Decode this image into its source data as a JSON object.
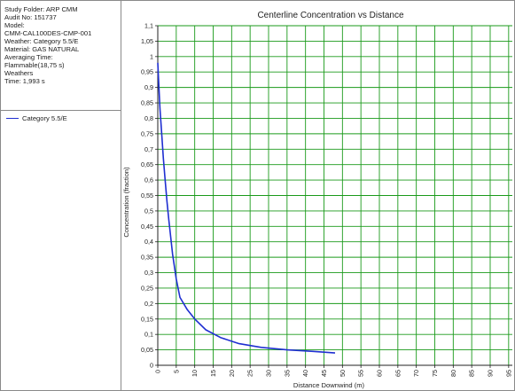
{
  "info_panel": {
    "lines": [
      "Study Folder: ARP CMM",
      "Audit No: 151737",
      "Model:",
      "CMM-CAL100DES-CMP-001",
      "Weather: Category 5.5/E",
      "Material: GAS NATURAL",
      "Averaging Time:",
      "Flammable(18,75 s)",
      "Weathers",
      "Time: 1,993 s"
    ]
  },
  "legend": {
    "label": "Category 5.5/E"
  },
  "colors": {
    "series": "#1f2fd1",
    "grid": "#1a9a1a",
    "axis": "#222222"
  },
  "chart_data": {
    "type": "line",
    "title": "Centerline Concentration vs Distance",
    "xlabel": "Distance Downwind (m)",
    "ylabel": "Concentration (fraction)",
    "xlim": [
      0,
      96
    ],
    "ylim": [
      0,
      1.1
    ],
    "x_ticks": [
      0,
      5,
      10,
      15,
      20,
      25,
      30,
      35,
      40,
      45,
      50,
      55,
      60,
      65,
      70,
      75,
      80,
      85,
      90,
      95
    ],
    "x_tick_labels": [
      "0",
      "5",
      "10",
      "15",
      "20",
      "25",
      "30",
      "35",
      "40",
      "45",
      "50",
      "55",
      "60",
      "65",
      "70",
      "75",
      "80",
      "85",
      "90",
      "95"
    ],
    "y_ticks": [
      0,
      0.05,
      0.1,
      0.15,
      0.2,
      0.25,
      0.3,
      0.35,
      0.4,
      0.45,
      0.5,
      0.55,
      0.6,
      0.65,
      0.7,
      0.75,
      0.8,
      0.85,
      0.9,
      0.95,
      1,
      1.05,
      1.1
    ],
    "y_tick_labels": [
      "0",
      "0,05",
      "0,1",
      "0,15",
      "0,2",
      "0,25",
      "0,3",
      "0,35",
      "0,4",
      "0,45",
      "0,5",
      "0,55",
      "0,6",
      "0,65",
      "0,7",
      "0,75",
      "0,8",
      "0,85",
      "0,9",
      "0,95",
      "1",
      "1,05",
      "1,1"
    ],
    "grid": true,
    "series": [
      {
        "name": "Category 5.5/E",
        "x": [
          0,
          0.3,
          0.6,
          1,
          1.5,
          2,
          2.5,
          3,
          4,
          5,
          6,
          8,
          10,
          13,
          17,
          22,
          28,
          35,
          42,
          48
        ],
        "y": [
          0.98,
          0.9,
          0.83,
          0.76,
          0.67,
          0.6,
          0.53,
          0.47,
          0.36,
          0.28,
          0.22,
          0.18,
          0.15,
          0.115,
          0.09,
          0.07,
          0.058,
          0.05,
          0.045,
          0.04
        ]
      }
    ]
  }
}
